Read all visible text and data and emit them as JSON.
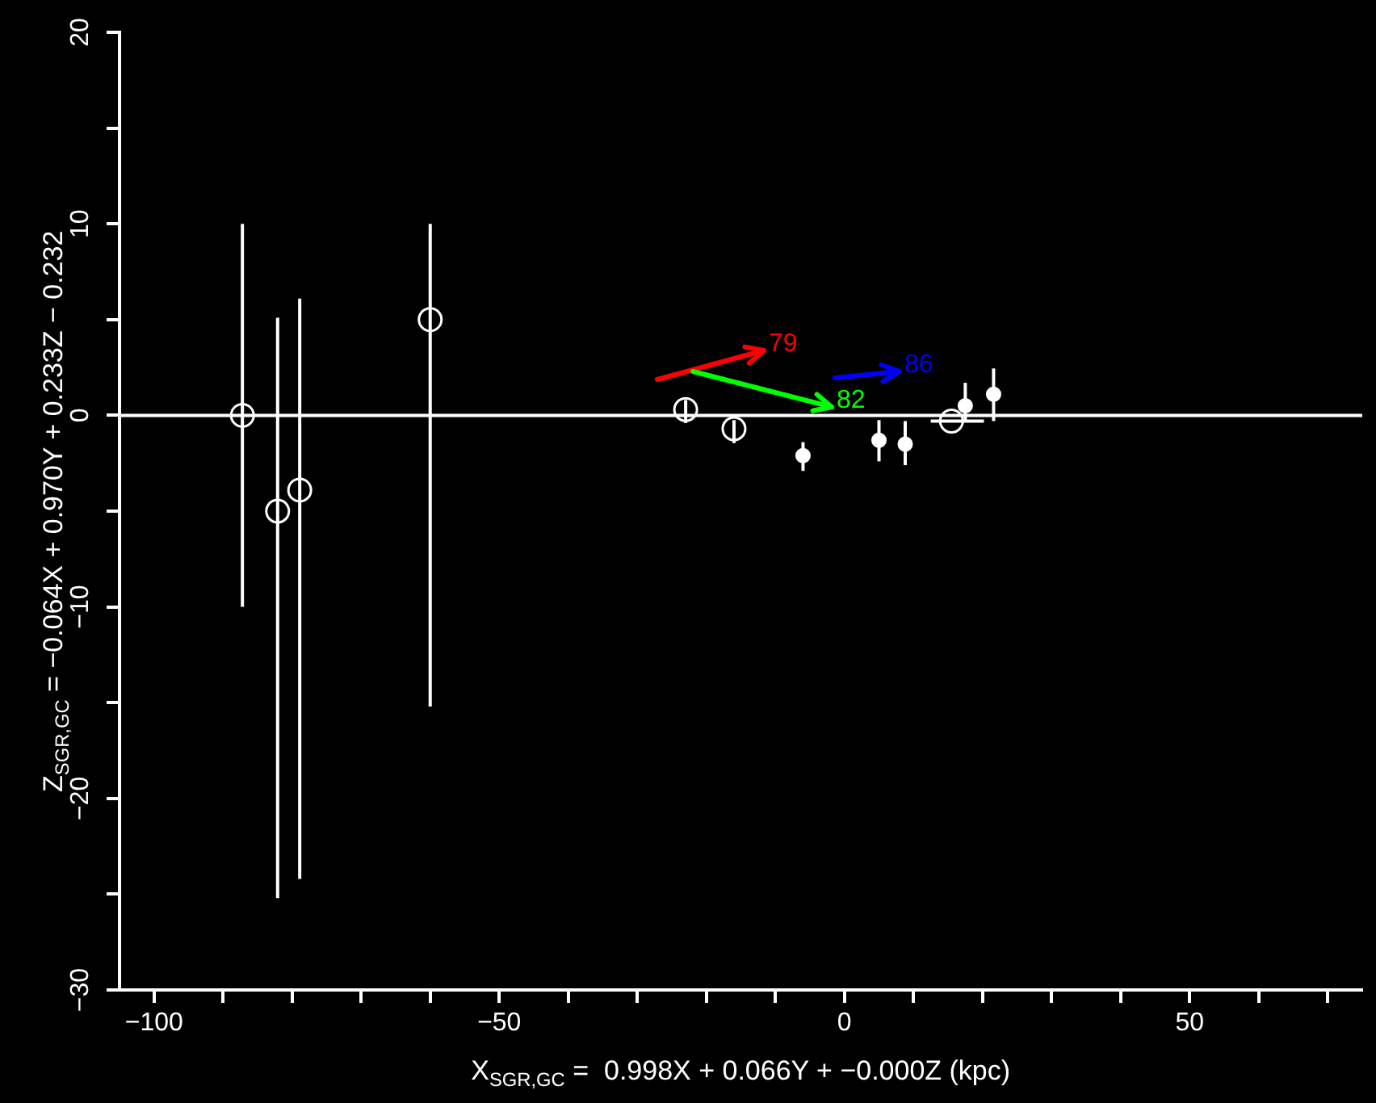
{
  "chart_data": {
    "type": "scatter",
    "xlabel": "X$_{SGR,GC}$ =  0.998X + 0.066Y + −0.000Z (kpc)",
    "ylabel": "Z$_{SGR,GC}$ = −0.064X + 0.970Y + 0.233Z − 0.232",
    "xlim": [
      -105,
      75
    ],
    "ylim": [
      -30,
      20
    ],
    "xticks": [
      {
        "value": -100,
        "label": "−100"
      },
      {
        "value": -90,
        "label": null
      },
      {
        "value": -80,
        "label": null
      },
      {
        "value": -70,
        "label": null
      },
      {
        "value": -60,
        "label": null
      },
      {
        "value": -50,
        "label": "−50"
      },
      {
        "value": -40,
        "label": null
      },
      {
        "value": -30,
        "label": null
      },
      {
        "value": -20,
        "label": null
      },
      {
        "value": -10,
        "label": null
      },
      0,
      {
        "value": 10,
        "label": null
      },
      {
        "value": 20,
        "label": null
      },
      {
        "value": 30,
        "label": null
      },
      {
        "value": 40,
        "label": null
      },
      50,
      {
        "value": 60,
        "label": null
      },
      {
        "value": 70,
        "label": null
      }
    ],
    "yticks": [
      {
        "value": -30,
        "label": "−30"
      },
      {
        "value": -25,
        "label": null
      },
      {
        "value": -20,
        "label": "−20"
      },
      {
        "value": -15,
        "label": null
      },
      {
        "value": -10,
        "label": "−10"
      },
      {
        "value": -5,
        "label": null
      },
      0,
      {
        "value": 5,
        "label": null
      },
      10,
      {
        "value": 15,
        "label": null
      },
      20
    ],
    "grid": false,
    "marker": "circle",
    "ref_lines": [
      {
        "axis": "y",
        "value": 0,
        "color": "#ffffff"
      }
    ],
    "series": [
      {
        "type": "scatter",
        "color": "#ffffff",
        "x": [
          -87.2,
          -82.1,
          -78.9,
          -60,
          -23,
          -16,
          15.5
        ],
        "values": [
          0,
          -5,
          -3.9,
          5,
          0.3,
          -0.7,
          -0.3
        ],
        "errors": [
          [
            -10,
            10
          ],
          [
            -25.2,
            5.1
          ],
          [
            -24.2,
            6.1
          ],
          [
            -15.2,
            10
          ],
          [
            -0.4,
            0.8
          ],
          [
            -1.45,
            -0.25
          ],
          null
        ],
        "xerrors": [
          null,
          null,
          null,
          null,
          null,
          null,
          [
            12.5,
            20.2
          ]
        ]
      },
      {
        "type": "scatter",
        "color": "#ffffff",
        "x": [
          -6,
          5,
          8.8,
          17.5,
          21.6
        ],
        "values": [
          -2.1,
          -1.3,
          -1.5,
          0.5,
          1.1
        ],
        "errors": [
          [
            -2.9,
            -1.4
          ],
          [
            -2.4,
            -0.25
          ],
          [
            -2.6,
            -0.3
          ],
          [
            -0.3,
            1.7
          ],
          [
            -0.3,
            2.45
          ]
        ]
      }
    ],
    "annotations": [
      "79",
      "82",
      "86"
    ]
  }
}
